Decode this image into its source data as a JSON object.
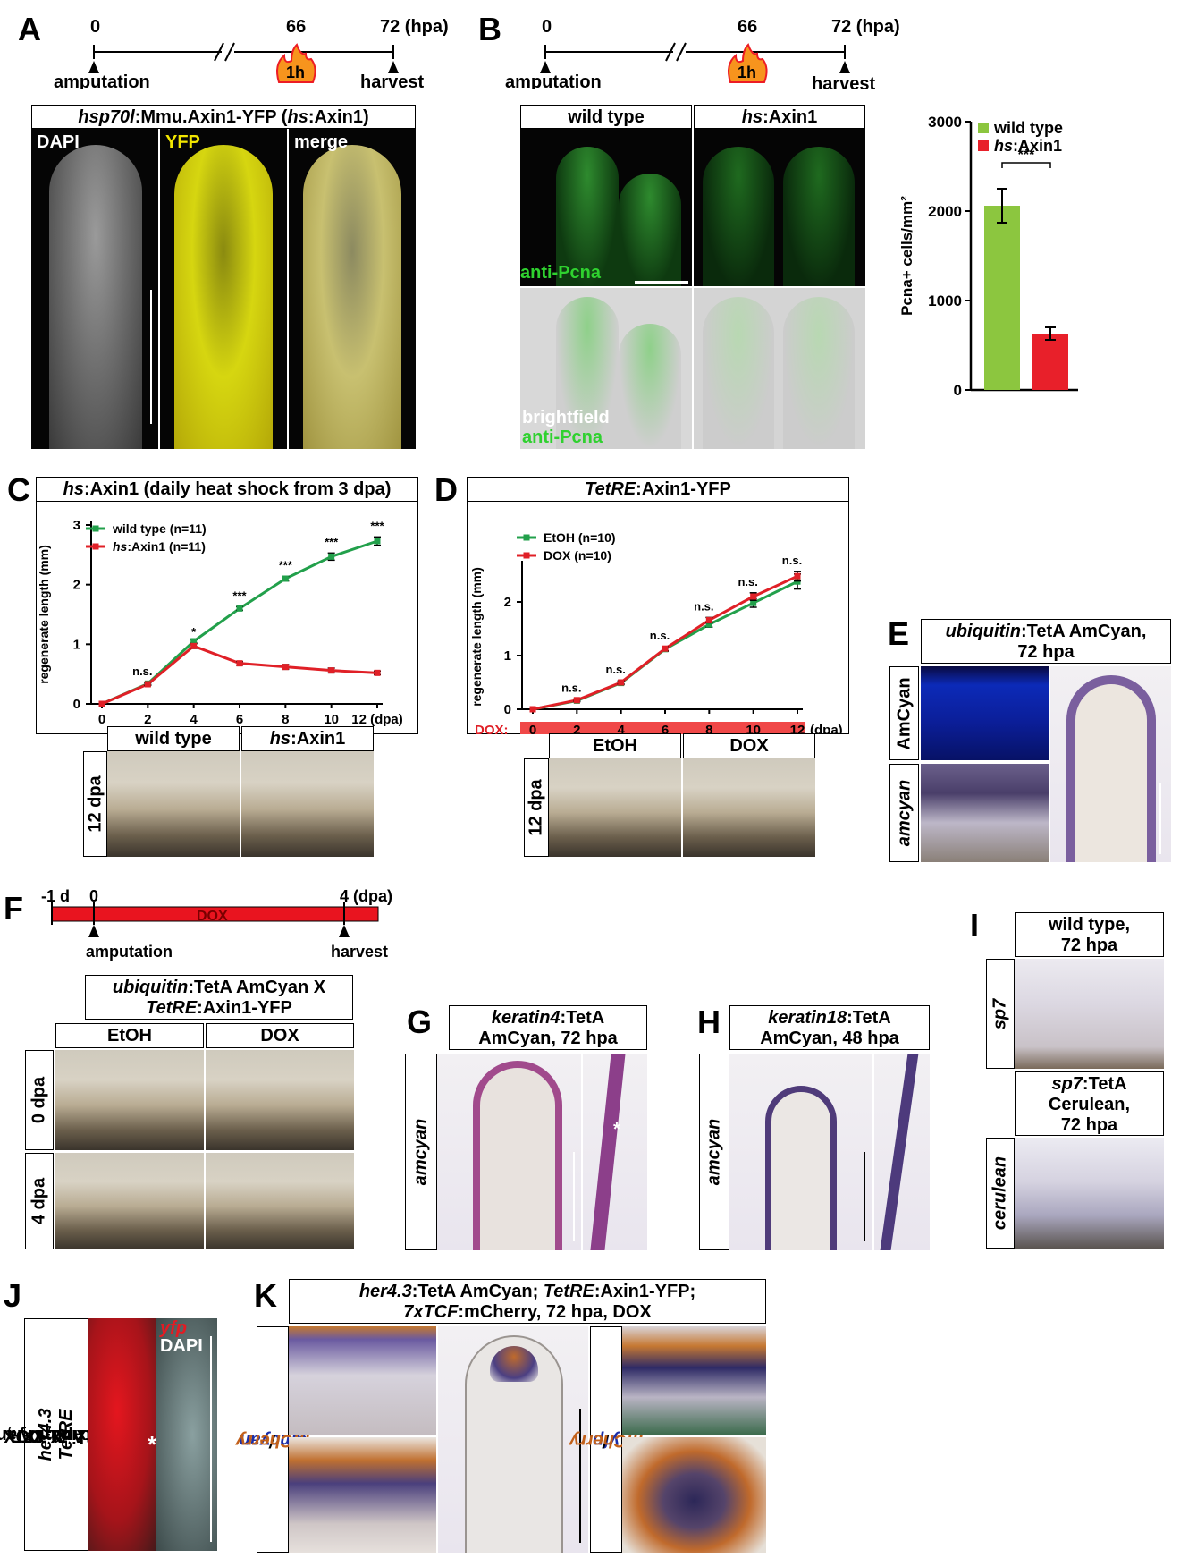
{
  "panels": {
    "A": {
      "label": "A",
      "timeline": {
        "t0": "0",
        "t66": "66",
        "t72": "72 (hpa)",
        "amputation": "amputation",
        "harvest": "harvest",
        "hs": "1h"
      },
      "title_italic": "hsp70l",
      "title_rest": ":Mmu.Axin1-YFP (",
      "title_hs": "hs",
      "title_end": ":Axin1)",
      "channels": [
        "DAPI",
        "YFP",
        "merge"
      ]
    },
    "B": {
      "label": "B",
      "timeline": {
        "t0": "0",
        "t66": "66",
        "t72": "72 (hpa)",
        "amputation": "amputation",
        "harvest": "harvest",
        "hs": "1h"
      },
      "col_wt": "wild type",
      "col_hs_i": "hs",
      "col_hs_r": ":Axin1",
      "stain1": "anti-Pcna",
      "stain2a": "brightfield",
      "stain2b": "anti-Pcna"
    },
    "C": {
      "label": "C",
      "title_i": "hs",
      "title_r": ":Axin1 (daily heat shock from 3 dpa)",
      "col_wt": "wild type",
      "col_hs_i": "hs",
      "col_hs_r": ":Axin1",
      "row": "12 dpa"
    },
    "D": {
      "label": "D",
      "title_i": "TetRE",
      "title_r": ":Axin1-YFP",
      "dox_label": "DOX:",
      "col1": "EtOH",
      "col2": "DOX",
      "row": "12 dpa"
    },
    "E": {
      "label": "E",
      "title_i": "ubiquitin",
      "title_r": ":TetA AmCyan,",
      "title2": "72 hpa",
      "row1": "AmCyan",
      "row2": "amcyan"
    },
    "F": {
      "label": "F",
      "timeline": {
        "tm1": "-1 d",
        "t0": "0",
        "t4": "4 (dpa)",
        "dox": "DOX",
        "amputation": "amputation",
        "harvest": "harvest"
      },
      "title1_i": "ubiquitin",
      "title1_r": ":TetA AmCyan X",
      "title2_i": "TetRE",
      "title2_r": ":Axin1-YFP",
      "col1": "EtOH",
      "col2": "DOX",
      "row1": "0 dpa",
      "row2": "4 dpa"
    },
    "G": {
      "label": "G",
      "title_i": "keratin4",
      "title_r": ":TetA",
      "title2": "AmCyan, 72 hpa",
      "row": "amcyan",
      "star": "*"
    },
    "H": {
      "label": "H",
      "title_i": "keratin18",
      "title_r": ":TetA",
      "title2": "AmCyan, 48 hpa",
      "row": "amcyan"
    },
    "I": {
      "label": "I",
      "t1a": "wild type,",
      "t1b": "72 hpa",
      "row1": "sp7",
      "t2a_i": "sp7",
      "t2a_r": ":TetA",
      "t2b": "Cerulean,",
      "t2c": "72 hpa",
      "row2": "cerulean"
    },
    "J": {
      "label": "J",
      "vl1_i": "her4.3",
      "vl1_r": ":TetA AmCyan",
      "vl2a": "X ",
      "vl2_i": "TetRE",
      "vl2_r": ":Axin1-YFP,",
      "vl3": "72 hpa, DOX",
      "yfp": "yfp",
      "dapi": "DAPI",
      "star": "*"
    },
    "K": {
      "label": "K",
      "t1_i": "her4.3",
      "t1_r": ":TetA AmCyan; ",
      "t1b_i": "TetRE",
      "t1b_r": ":Axin1-YFP;",
      "t2_i": "7xTCF",
      "t2_r": ":mCherry, 72 hpa, DOX",
      "left_a": "amcyan",
      "left_sep": " / ",
      "left_b": "mCherry",
      "right_a": "yfp",
      "right_sep": " / ",
      "right_b": "mCherry"
    }
  },
  "chart_data": [
    {
      "type": "bar",
      "panel": "B",
      "categories": [
        "wild type",
        "hs:Axin1"
      ],
      "legend": [
        "wild type",
        "hs:Axin1"
      ],
      "values": [
        2060,
        630
      ],
      "errors": [
        190,
        70
      ],
      "colors": [
        "#8cc63f",
        "#e8202a"
      ],
      "ylabel": "Pcna+ cells/mm²",
      "yticks": [
        "0",
        "1000",
        "2000",
        "3000"
      ],
      "ylim": [
        0,
        3000
      ],
      "significance": "***"
    },
    {
      "type": "line",
      "panel": "C",
      "x": [
        0,
        2,
        4,
        6,
        8,
        10,
        12
      ],
      "xticks": [
        "0",
        "2",
        "4",
        "6",
        "8",
        "10",
        "12 (dpa)"
      ],
      "yticks": [
        "0",
        "1",
        "2",
        "3"
      ],
      "ylim": [
        0,
        3
      ],
      "ylabel": "regenerate length (mm)",
      "series": [
        {
          "name": "wild type (n=11)",
          "color": "#22a04b",
          "values": [
            0,
            0.34,
            1.05,
            1.6,
            2.1,
            2.47,
            2.73
          ],
          "err": [
            0,
            0.02,
            0.03,
            0.03,
            0.04,
            0.06,
            0.07
          ]
        },
        {
          "name": "hs:Axin1 (n=11)",
          "color": "#e02027",
          "values": [
            0,
            0.33,
            0.97,
            0.68,
            0.62,
            0.56,
            0.52
          ],
          "err": [
            0,
            0.02,
            0.04,
            0.03,
            0.04,
            0.04,
            0.03
          ]
        }
      ],
      "annotations": [
        "n.s.",
        "*",
        "***",
        "***",
        "***",
        "***"
      ]
    },
    {
      "type": "line",
      "panel": "D",
      "x": [
        0,
        2,
        4,
        6,
        8,
        10,
        12
      ],
      "xticks": [
        "0",
        "2",
        "4",
        "6",
        "8",
        "10",
        "12"
      ],
      "x_unit": "(dpa)",
      "yticks": [
        "0",
        "1",
        "2"
      ],
      "ylim": [
        0,
        2.7
      ],
      "ylabel": "regenerate length (mm)",
      "series": [
        {
          "name": "EtOH (n=10)",
          "color": "#22a04b",
          "values": [
            0,
            0.16,
            0.49,
            1.12,
            1.58,
            1.98,
            2.38
          ],
          "err": [
            0,
            0.02,
            0.03,
            0.04,
            0.05,
            0.08,
            0.14
          ]
        },
        {
          "name": "DOX (n=10)",
          "color": "#e02027",
          "values": [
            0,
            0.17,
            0.5,
            1.13,
            1.66,
            2.1,
            2.48
          ],
          "err": [
            0,
            0.02,
            0.03,
            0.04,
            0.05,
            0.07,
            0.09
          ]
        }
      ],
      "annotations": [
        "n.s.",
        "n.s.",
        "n.s.",
        "n.s.",
        "n.s.",
        "n.s."
      ]
    }
  ]
}
